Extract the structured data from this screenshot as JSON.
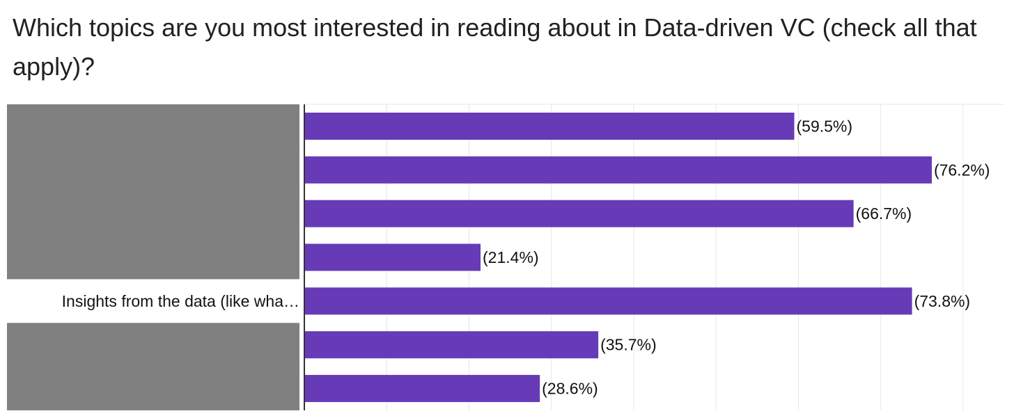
{
  "question": "Which topics are you most interested in reading about in Data-driven VC (check all that apply)?",
  "colors": {
    "bar": "#673ab7",
    "mask": "#808080",
    "grid": "#e6e6e6"
  },
  "chart_data": {
    "type": "bar",
    "orientation": "horizontal",
    "categories": [
      "",
      "",
      "",
      "",
      "Insights from the data (like wha…",
      "",
      ""
    ],
    "values": [
      59.5,
      76.2,
      66.7,
      21.4,
      73.8,
      35.7,
      28.6
    ],
    "data_labels": [
      "(59.5%)",
      "(76.2%)",
      "(66.7%)",
      "(21.4%)",
      "(73.8%)",
      "(35.7%)",
      "(28.6%)"
    ],
    "xlim": [
      0,
      85
    ],
    "grid": true,
    "redacted_category_labels": [
      0,
      1,
      2,
      3,
      5,
      6
    ]
  }
}
